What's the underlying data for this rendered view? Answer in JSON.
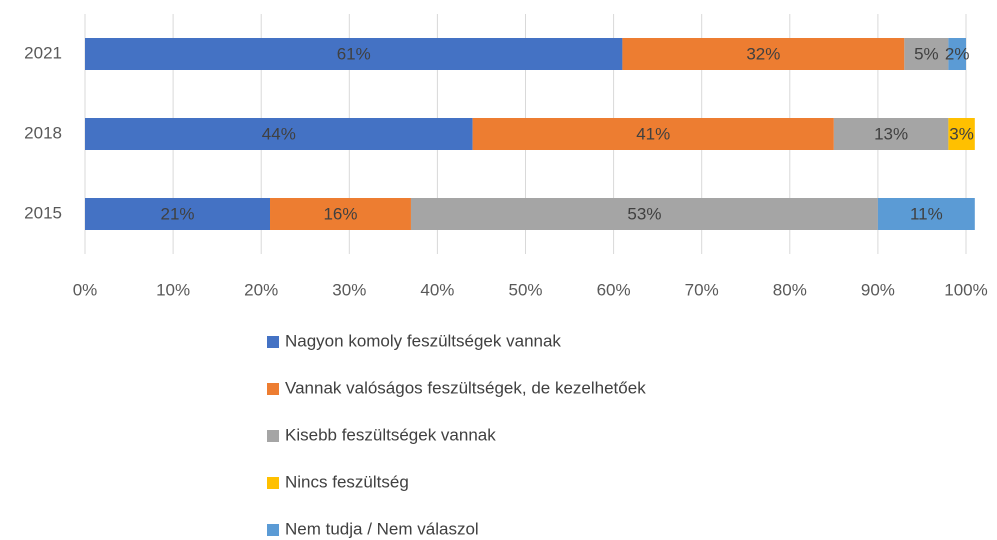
{
  "chart_data": {
    "type": "stacked_barh",
    "categories": [
      "2021",
      "2018",
      "2015"
    ],
    "series": [
      {
        "name": "Nagyon komoly feszültségek vannak",
        "color": "#4472c4",
        "values": [
          61,
          44,
          21
        ],
        "value_labels": [
          "61%",
          "44%",
          "21%"
        ]
      },
      {
        "name": "Vannak valóságos feszültségek, de kezelhetőek",
        "color": "#ed7d31",
        "values": [
          32,
          41,
          16
        ],
        "value_labels": [
          "32%",
          "41%",
          "16%"
        ]
      },
      {
        "name": "Kisebb feszültségek vannak",
        "color": "#a5a5a5",
        "values": [
          5,
          13,
          53
        ],
        "value_labels": [
          "5%",
          "13%",
          "53%"
        ]
      },
      {
        "name": "Nincs feszültség",
        "color": "#ffc000",
        "values": [
          null,
          3,
          null
        ],
        "value_labels": [
          null,
          "3%",
          null
        ]
      },
      {
        "name": "Nem tudja / Nem válaszol",
        "color": "#5b9bd5",
        "values": [
          2,
          null,
          11
        ],
        "value_labels": [
          "2%",
          null,
          "11%"
        ]
      }
    ],
    "xlim": [
      0,
      100
    ],
    "xticks": [
      {
        "value": 0,
        "label": "0%"
      },
      {
        "value": 10,
        "label": "10%"
      },
      {
        "value": 20,
        "label": "20%"
      },
      {
        "value": 30,
        "label": "30%"
      },
      {
        "value": 40,
        "label": "40%"
      },
      {
        "value": 50,
        "label": "50%"
      },
      {
        "value": 60,
        "label": "60%"
      },
      {
        "value": 70,
        "label": "70%"
      },
      {
        "value": 80,
        "label": "80%"
      },
      {
        "value": 90,
        "label": "90%"
      },
      {
        "value": 100,
        "label": "100%"
      }
    ],
    "grid": true,
    "legend": "bottom"
  }
}
